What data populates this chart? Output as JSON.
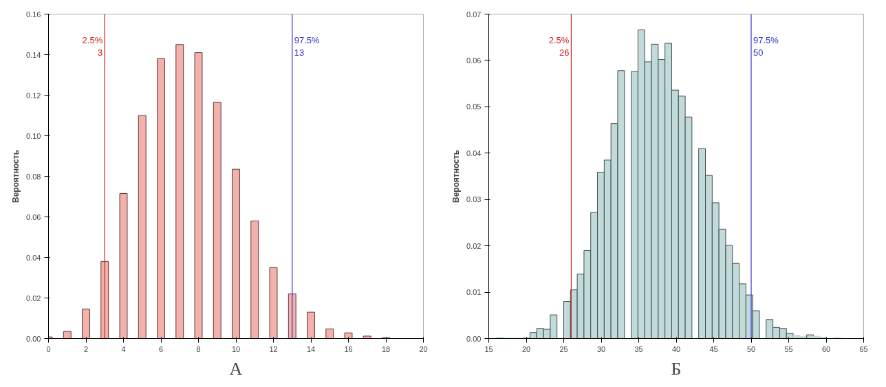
{
  "chart_data": [
    {
      "type": "bar",
      "title": "А",
      "ylabel": "Вероятность",
      "x": [
        0,
        1,
        2,
        3,
        4,
        5,
        6,
        7,
        8,
        9,
        10,
        11,
        12,
        13,
        14,
        15,
        16,
        17,
        18
      ],
      "values": [
        0.0008,
        0.0035,
        0.0145,
        0.038,
        0.0715,
        0.11,
        0.138,
        0.145,
        0.141,
        0.1165,
        0.0835,
        0.058,
        0.035,
        0.022,
        0.013,
        0.0047,
        0.0028,
        0.0012,
        0.0004
      ],
      "color": "#f4b0aa",
      "xlim": [
        0,
        20
      ],
      "xticks": [
        0,
        2,
        4,
        6,
        8,
        10,
        12,
        14,
        16,
        18,
        20
      ],
      "ylim": [
        0,
        0.16
      ],
      "yticks": [
        {
          "value": 0,
          "label": "0.00"
        },
        {
          "value": 0.02,
          "label": "0.02"
        },
        {
          "value": 0.04,
          "label": "0.04"
        },
        {
          "value": 0.06,
          "label": "0.06"
        },
        {
          "value": 0.08,
          "label": "0.08"
        },
        {
          "value": 0.1,
          "label": "0.10"
        },
        {
          "value": 0.12,
          "label": "0.12"
        },
        {
          "value": 0.14,
          "label": "0.14"
        },
        {
          "value": 0.16,
          "label": "0.16"
        }
      ],
      "ref_lines": [
        {
          "axis": "x",
          "value": 3,
          "label": "2.5%\n3",
          "color": "#cc2222"
        },
        {
          "axis": "x",
          "value": 13,
          "label": "97.5%\n13",
          "color": "#3333cc"
        }
      ],
      "grid": false
    },
    {
      "type": "histogram",
      "title": "Б",
      "ylabel": "Вероятность",
      "bins": [
        16.0,
        16.9,
        17.8,
        18.7,
        19.6,
        20.5,
        21.4,
        22.3,
        23.2,
        24.1,
        25.0,
        25.9,
        26.8,
        27.7,
        28.6,
        29.5,
        30.4,
        31.3,
        32.2,
        33.1,
        34.0,
        34.9,
        35.8,
        36.7,
        37.6,
        38.5,
        39.4,
        40.3,
        41.2,
        42.1,
        43.0,
        43.9,
        44.8,
        45.7,
        46.6,
        47.5,
        48.4,
        49.3,
        50.2,
        51.1,
        52.0,
        52.9,
        53.8,
        54.7,
        55.6,
        56.5,
        57.4,
        58.3,
        59.2,
        60.1,
        61.0,
        61.9
      ],
      "values": [
        0.0003,
        0.0001,
        0.0001,
        0.0001,
        0.0003,
        0.0013,
        0.0022,
        0.002,
        0.0051,
        0,
        0.008,
        0.0105,
        0.0139,
        0.019,
        0.0272,
        0.0359,
        0.0385,
        0.0464,
        0.0578,
        0,
        0.0576,
        0.0666,
        0.0597,
        0.0635,
        0.0602,
        0.0637,
        0.0536,
        0.0523,
        0.0478,
        0,
        0.041,
        0.0352,
        0.0293,
        0.0236,
        0.0201,
        0.0162,
        0.0118,
        0.0094,
        0.006,
        0,
        0.0041,
        0.0024,
        0.0022,
        0.0011,
        0.0007,
        0.0004,
        0.0008,
        0.0005,
        0.0003,
        0,
        0.0002
      ],
      "color": "#c3dadb",
      "xlim": [
        15,
        65
      ],
      "xticks": [
        15,
        20,
        25,
        30,
        35,
        40,
        45,
        50,
        55,
        60,
        65
      ],
      "ylim": [
        0,
        0.07
      ],
      "yticks": [
        {
          "value": 0,
          "label": "0.00"
        },
        {
          "value": 0.01,
          "label": "0.01"
        },
        {
          "value": 0.02,
          "label": "0.02"
        },
        {
          "value": 0.03,
          "label": "0.03"
        },
        {
          "value": 0.04,
          "label": "0.04"
        },
        {
          "value": 0.05,
          "label": "0.05"
        },
        {
          "value": 0.06,
          "label": "0.06"
        },
        {
          "value": 0.07,
          "label": "0.07"
        }
      ],
      "ref_lines": [
        {
          "axis": "x",
          "value": 26,
          "label": "2.5%\n26",
          "color": "#cc2222"
        },
        {
          "axis": "x",
          "value": 50,
          "label": "97.5%\n50",
          "color": "#3333cc"
        }
      ],
      "grid": false
    }
  ]
}
